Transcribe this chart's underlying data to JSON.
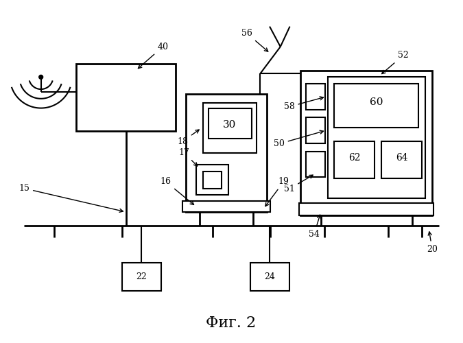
{
  "title": "Фиг. 2",
  "background_color": "#ffffff"
}
